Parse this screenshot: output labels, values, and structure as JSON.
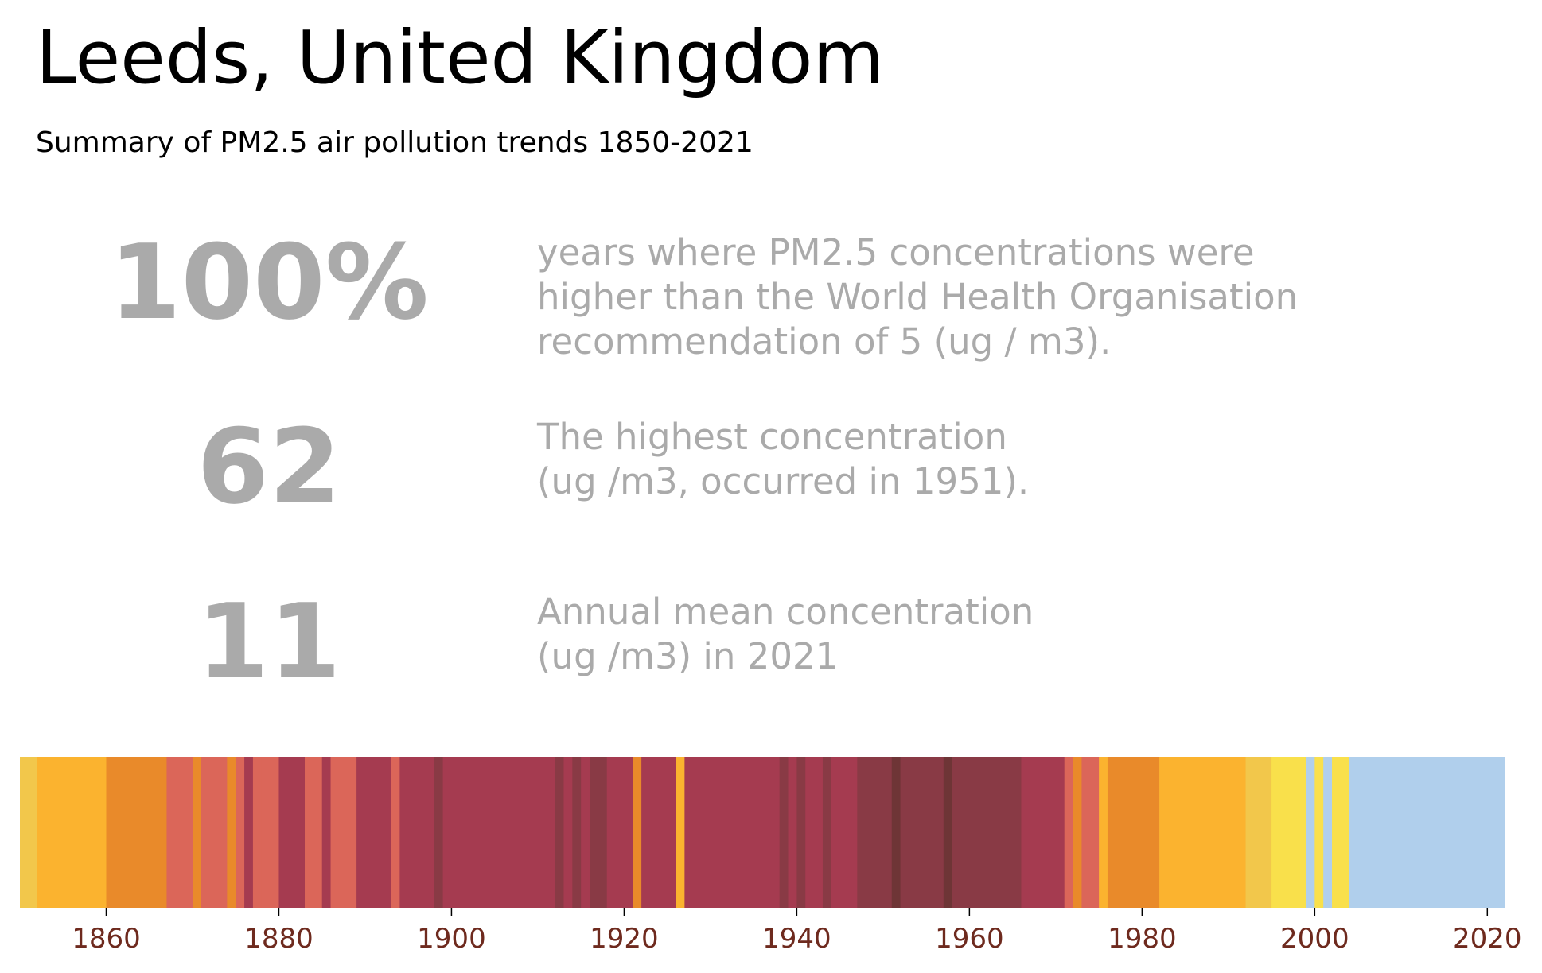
{
  "title": "Leeds, United Kingdom",
  "subtitle": "Summary of PM2.5 air pollution trends 1850-2021",
  "stats": [
    {
      "value": "100%",
      "description": "years where PM2.5 concentrations were\nhigher than the World Health Organisation\nrecommendation of 5 (ug / m3)."
    },
    {
      "value": "62",
      "description": "The highest concentration\n(ug /m3, occurred in 1951)."
    },
    {
      "value": "11",
      "description": "Annual mean concentration\n(ug /m3) in 2021"
    }
  ],
  "chart_data": {
    "type": "heatmap",
    "xlim": [
      1850,
      2022
    ],
    "x_ticks": [
      1860,
      1880,
      1900,
      1920,
      1940,
      1960,
      1980,
      2000,
      2020
    ],
    "colors": {
      "level1": "#b0cfec",
      "level2": "#f9e04b",
      "level3": "#f2c74b",
      "level4": "#fbb32f",
      "level5": "#e98a2a",
      "level6": "#db6659",
      "level7": "#a53b50",
      "level8": "#893a45",
      "level9": "#6e3536",
      "tick_label": "#6e2a1e"
    },
    "stripes": [
      {
        "from": 1850,
        "to": 1852,
        "level": "level3"
      },
      {
        "from": 1852,
        "to": 1860,
        "level": "level4"
      },
      {
        "from": 1860,
        "to": 1867,
        "level": "level5"
      },
      {
        "from": 1867,
        "to": 1870,
        "level": "level6"
      },
      {
        "from": 1870,
        "to": 1871,
        "level": "level5"
      },
      {
        "from": 1871,
        "to": 1874,
        "level": "level6"
      },
      {
        "from": 1874,
        "to": 1875,
        "level": "level5"
      },
      {
        "from": 1875,
        "to": 1876,
        "level": "level6"
      },
      {
        "from": 1876,
        "to": 1877,
        "level": "level7"
      },
      {
        "from": 1877,
        "to": 1878,
        "level": "level6"
      },
      {
        "from": 1878,
        "to": 1880,
        "level": "level6"
      },
      {
        "from": 1880,
        "to": 1883,
        "level": "level7"
      },
      {
        "from": 1883,
        "to": 1885,
        "level": "level6"
      },
      {
        "from": 1885,
        "to": 1886,
        "level": "level7"
      },
      {
        "from": 1886,
        "to": 1889,
        "level": "level6"
      },
      {
        "from": 1889,
        "to": 1893,
        "level": "level7"
      },
      {
        "from": 1893,
        "to": 1894,
        "level": "level6"
      },
      {
        "from": 1894,
        "to": 1898,
        "level": "level7"
      },
      {
        "from": 1898,
        "to": 1899,
        "level": "level8"
      },
      {
        "from": 1899,
        "to": 1912,
        "level": "level7"
      },
      {
        "from": 1912,
        "to": 1913,
        "level": "level8"
      },
      {
        "from": 1913,
        "to": 1914,
        "level": "level7"
      },
      {
        "from": 1914,
        "to": 1915,
        "level": "level8"
      },
      {
        "from": 1915,
        "to": 1916,
        "level": "level7"
      },
      {
        "from": 1916,
        "to": 1918,
        "level": "level8"
      },
      {
        "from": 1918,
        "to": 1921,
        "level": "level7"
      },
      {
        "from": 1921,
        "to": 1922,
        "level": "level5"
      },
      {
        "from": 1922,
        "to": 1926,
        "level": "level7"
      },
      {
        "from": 1926,
        "to": 1927,
        "level": "level4"
      },
      {
        "from": 1927,
        "to": 1938,
        "level": "level7"
      },
      {
        "from": 1938,
        "to": 1939,
        "level": "level8"
      },
      {
        "from": 1939,
        "to": 1940,
        "level": "level7"
      },
      {
        "from": 1940,
        "to": 1941,
        "level": "level8"
      },
      {
        "from": 1941,
        "to": 1943,
        "level": "level7"
      },
      {
        "from": 1943,
        "to": 1944,
        "level": "level8"
      },
      {
        "from": 1944,
        "to": 1947,
        "level": "level7"
      },
      {
        "from": 1947,
        "to": 1951,
        "level": "level8"
      },
      {
        "from": 1951,
        "to": 1952,
        "level": "level9"
      },
      {
        "from": 1952,
        "to": 1957,
        "level": "level8"
      },
      {
        "from": 1957,
        "to": 1958,
        "level": "level9"
      },
      {
        "from": 1958,
        "to": 1966,
        "level": "level8"
      },
      {
        "from": 1966,
        "to": 1971,
        "level": "level7"
      },
      {
        "from": 1971,
        "to": 1972,
        "level": "level6"
      },
      {
        "from": 1972,
        "to": 1973,
        "level": "level5"
      },
      {
        "from": 1973,
        "to": 1975,
        "level": "level6"
      },
      {
        "from": 1975,
        "to": 1976,
        "level": "level4"
      },
      {
        "from": 1976,
        "to": 1982,
        "level": "level5"
      },
      {
        "from": 1982,
        "to": 1992,
        "level": "level4"
      },
      {
        "from": 1992,
        "to": 1995,
        "level": "level3"
      },
      {
        "from": 1995,
        "to": 1999,
        "level": "level2"
      },
      {
        "from": 1999,
        "to": 2000,
        "level": "level1"
      },
      {
        "from": 2000,
        "to": 2001,
        "level": "level2"
      },
      {
        "from": 2001,
        "to": 2002,
        "level": "level1"
      },
      {
        "from": 2002,
        "to": 2004,
        "level": "level2"
      },
      {
        "from": 2004,
        "to": 2022,
        "level": "level1"
      }
    ]
  }
}
